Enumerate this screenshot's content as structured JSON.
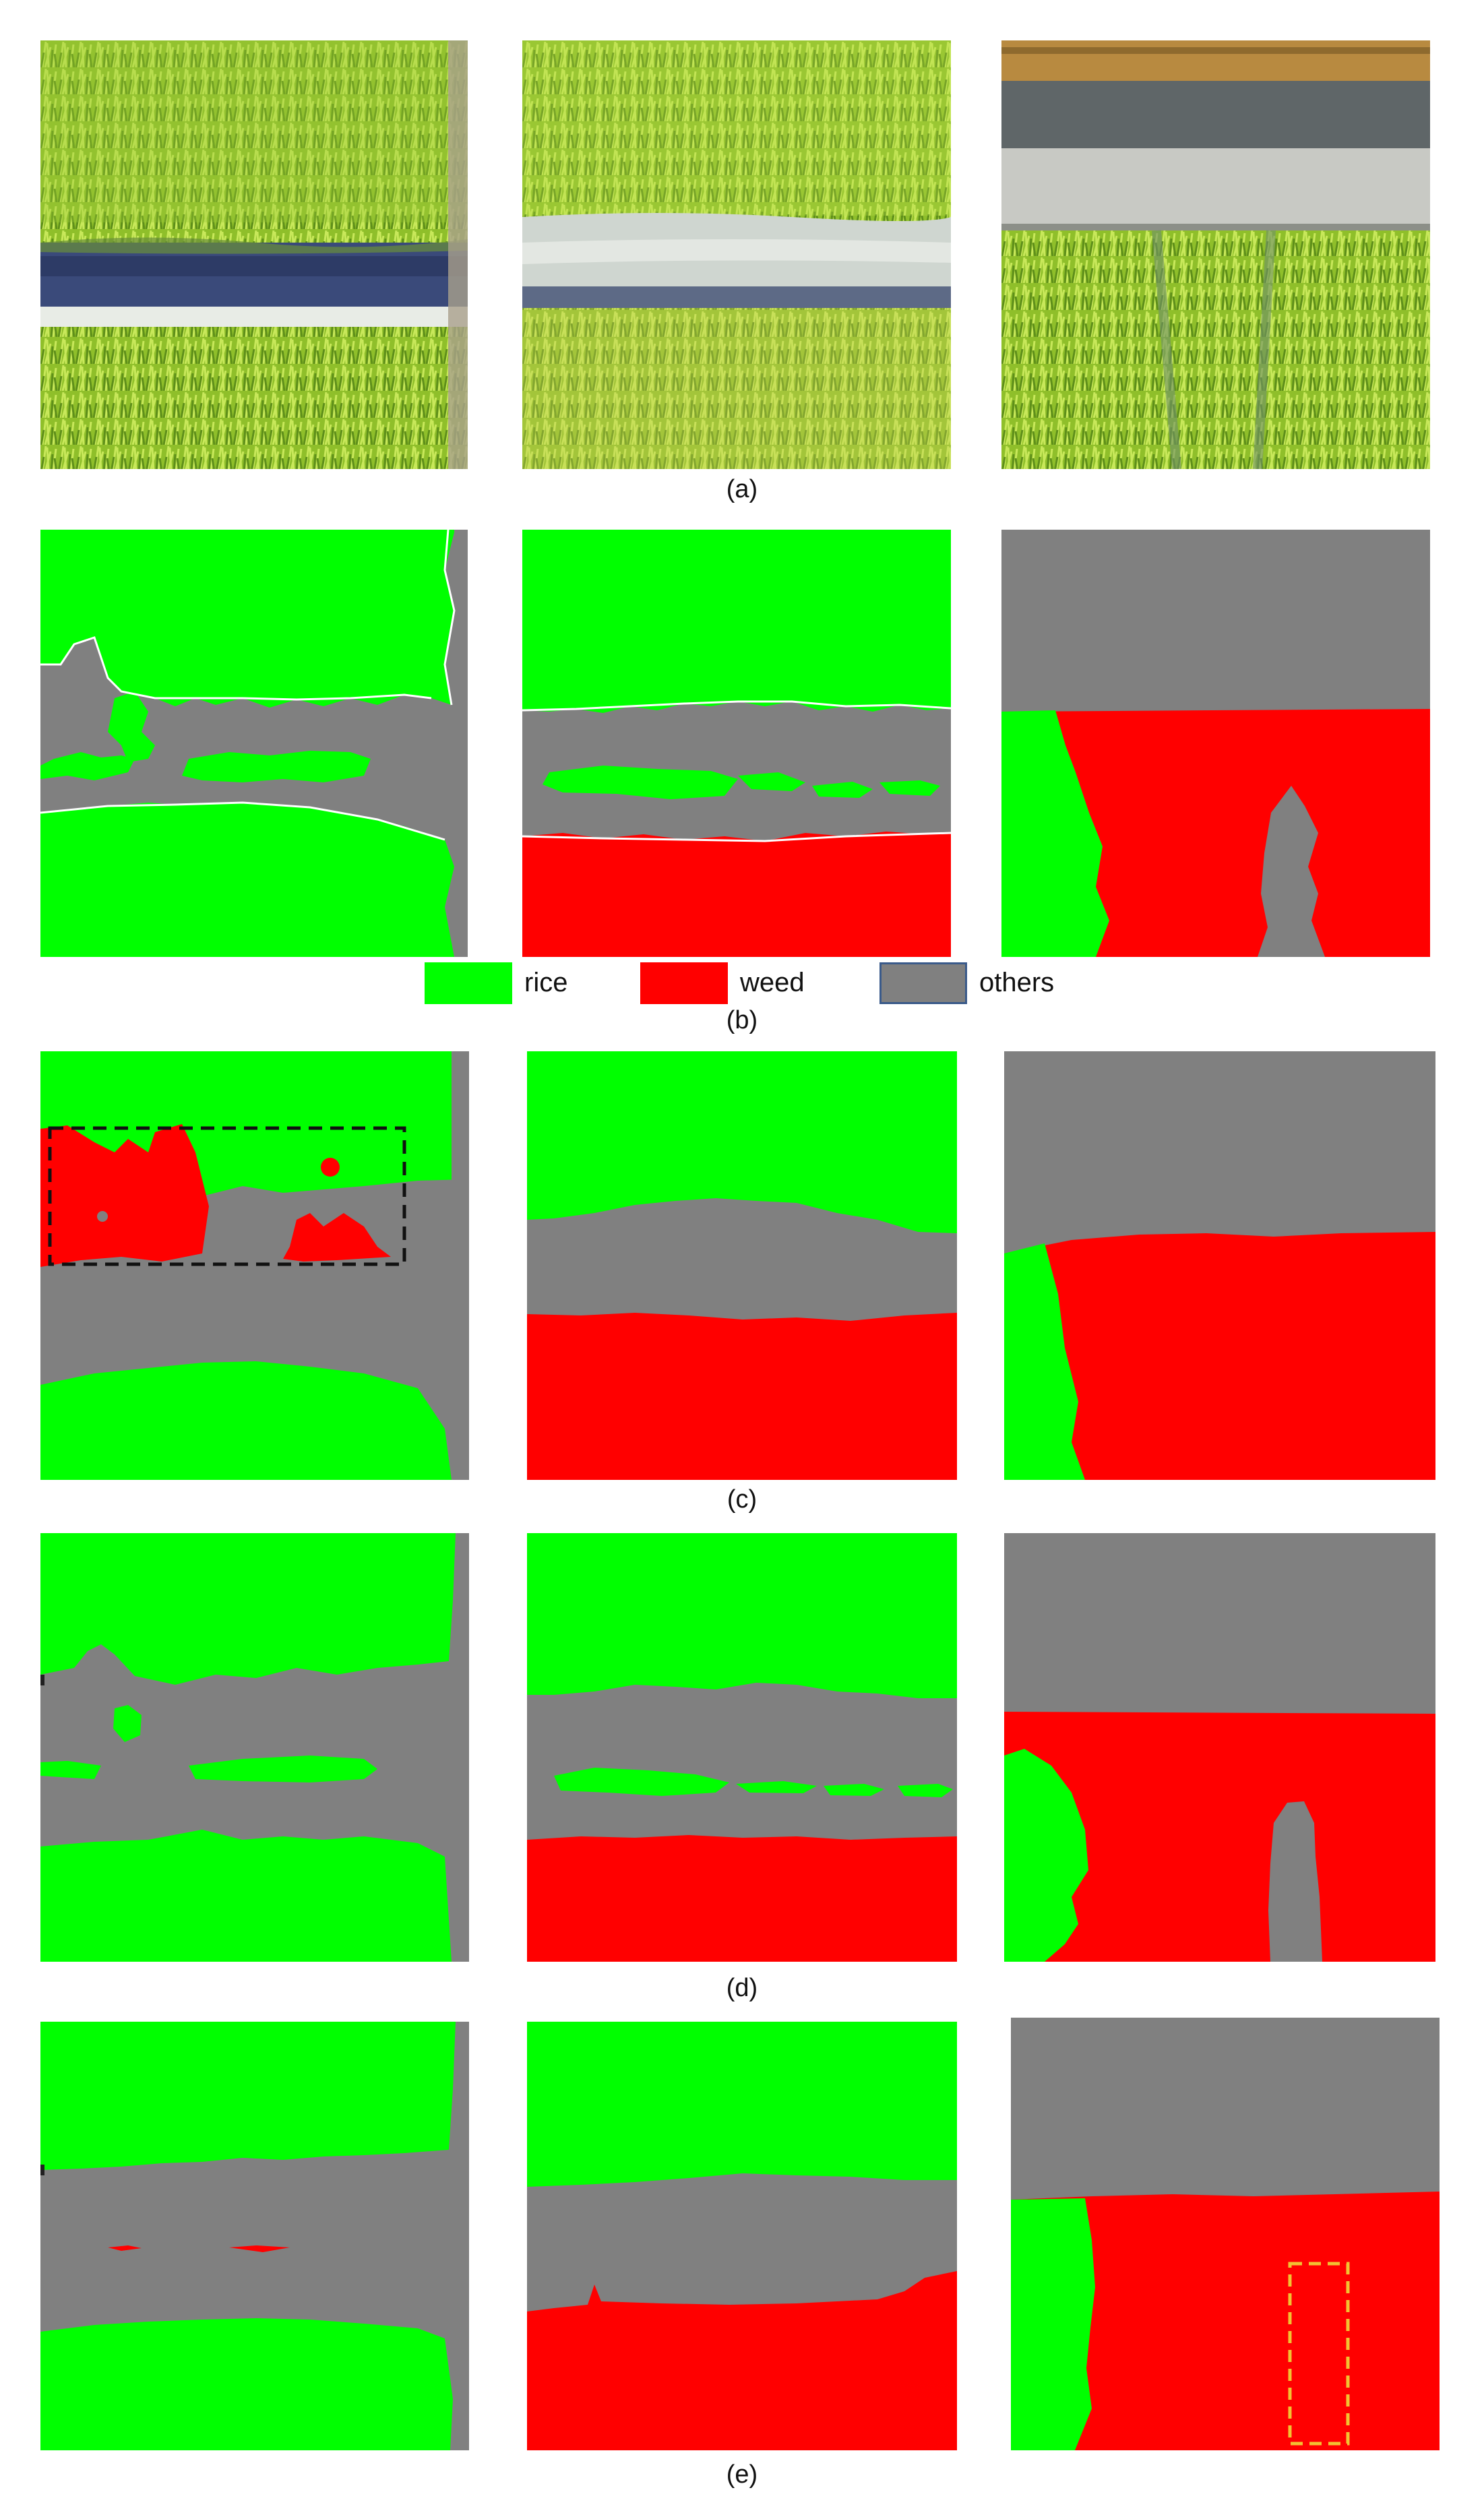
{
  "colors": {
    "rice": "#00ff00",
    "weed": "#ff0000",
    "others": "#808080",
    "box_black": "#111111",
    "box_yellow": "#f2c232"
  },
  "captions": {
    "a": "(a)",
    "b": "(b)",
    "c": "(c)",
    "d": "(d)",
    "e": "(e)"
  },
  "legend": [
    {
      "label": "rice",
      "color_key": "rice"
    },
    {
      "label": "weed",
      "color_key": "weed"
    },
    {
      "label": "others",
      "color_key": "others"
    }
  ]
}
